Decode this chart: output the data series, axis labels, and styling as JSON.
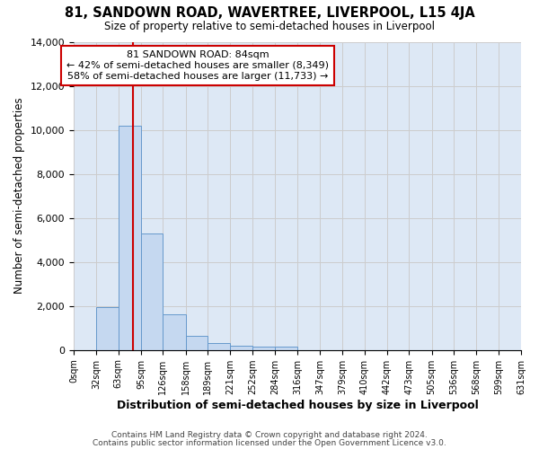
{
  "title": "81, SANDOWN ROAD, WAVERTREE, LIVERPOOL, L15 4JA",
  "subtitle": "Size of property relative to semi-detached houses in Liverpool",
  "xlabel": "Distribution of semi-detached houses by size in Liverpool",
  "ylabel": "Number of semi-detached properties",
  "annotation_line1": "81 SANDOWN ROAD: 84sqm",
  "annotation_line2": "← 42% of semi-detached houses are smaller (8,349)",
  "annotation_line3": "58% of semi-detached houses are larger (11,733) →",
  "property_size": 84,
  "bar_left_edges": [
    0,
    32,
    63,
    95,
    126,
    158,
    189,
    221,
    252,
    284,
    316,
    347,
    379,
    410,
    442,
    473,
    505,
    536,
    568,
    599,
    631
  ],
  "bin_labels": [
    "0sqm",
    "32sqm",
    "63sqm",
    "95sqm",
    "126sqm",
    "158sqm",
    "189sqm",
    "221sqm",
    "252sqm",
    "284sqm",
    "316sqm",
    "347sqm",
    "379sqm",
    "410sqm",
    "442sqm",
    "473sqm",
    "505sqm",
    "536sqm",
    "568sqm",
    "599sqm",
    "631sqm"
  ],
  "bar_heights": [
    0,
    1950,
    10200,
    5300,
    1600,
    650,
    300,
    200,
    150,
    150,
    0,
    0,
    0,
    0,
    0,
    0,
    0,
    0,
    0,
    0
  ],
  "bar_color": "#c5d8f0",
  "bar_edge_color": "#6699cc",
  "red_line_color": "#cc0000",
  "annotation_box_edge": "#cc0000",
  "ylim": [
    0,
    14000
  ],
  "yticks": [
    0,
    2000,
    4000,
    6000,
    8000,
    10000,
    12000,
    14000
  ],
  "grid_color": "#cccccc",
  "bg_color": "#dde8f5",
  "footer1": "Contains HM Land Registry data © Crown copyright and database right 2024.",
  "footer2": "Contains public sector information licensed under the Open Government Licence v3.0."
}
